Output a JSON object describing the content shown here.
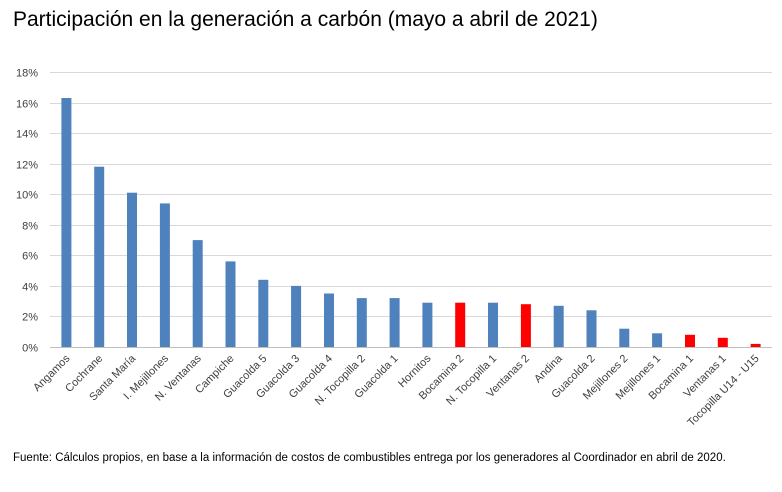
{
  "chart_data": {
    "type": "bar",
    "title": "Participación en la generación a carbón (mayo a abril de 2021)",
    "xlabel": "",
    "ylabel": "",
    "ylim": [
      0,
      0.18
    ],
    "y_ticks": [
      0,
      0.02,
      0.04,
      0.06,
      0.08,
      0.1,
      0.12,
      0.14,
      0.16,
      0.18
    ],
    "y_tick_labels": [
      "0%",
      "2%",
      "4%",
      "6%",
      "8%",
      "10%",
      "12%",
      "14%",
      "16%",
      "18%"
    ],
    "grid": true,
    "legend": "none",
    "categories": [
      "Angamos",
      "Cochrane",
      "Santa María",
      "I. Mejillones",
      "N. Ventanas",
      "Campiche",
      "Guacolda 5",
      "Guacolda 3",
      "Guacolda 4",
      "N. Tocopilla 2",
      "Guacolda 1",
      "Hornitos",
      "Bocamina 2",
      "N. Tocopilla 1",
      "Ventanas 2",
      "Andina",
      "Guacolda 2",
      "Mejillones 2",
      "Mejillones 1",
      "Bocamina 1",
      "Ventanas 1",
      "Tocopilla U14 - U15"
    ],
    "values": [
      0.163,
      0.118,
      0.101,
      0.094,
      0.07,
      0.056,
      0.044,
      0.04,
      0.035,
      0.032,
      0.032,
      0.029,
      0.029,
      0.029,
      0.028,
      0.027,
      0.024,
      0.012,
      0.009,
      0.008,
      0.006,
      0.002
    ],
    "bar_colors": [
      "#4f81bd",
      "#4f81bd",
      "#4f81bd",
      "#4f81bd",
      "#4f81bd",
      "#4f81bd",
      "#4f81bd",
      "#4f81bd",
      "#4f81bd",
      "#4f81bd",
      "#4f81bd",
      "#4f81bd",
      "#ff0000",
      "#4f81bd",
      "#ff0000",
      "#4f81bd",
      "#4f81bd",
      "#4f81bd",
      "#4f81bd",
      "#ff0000",
      "#ff0000",
      "#ff0000"
    ]
  },
  "source_note": "Fuente: Cálculos propios, en base a la información de costos de combustibles entrega por los generadores al Coordinador en abril de 2020."
}
